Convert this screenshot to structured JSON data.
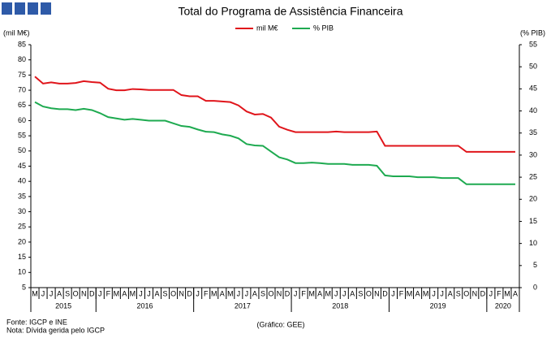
{
  "chart_data": {
    "type": "line",
    "title": "Total do Programa de Assistência Financeira",
    "y_label": "(mil M€)",
    "y2_label": "(% PIB)",
    "footnotes": [
      "Fonte: IGCP e INE",
      "Nota: Dívida gerida pelo IGCP"
    ],
    "credit": "(Gráfico: GEE)",
    "categories": [
      "M",
      "J",
      "J",
      "A",
      "S",
      "O",
      "N",
      "D",
      "J",
      "F",
      "M",
      "A",
      "M",
      "J",
      "J",
      "A",
      "S",
      "O",
      "N",
      "D",
      "J",
      "F",
      "M",
      "A",
      "M",
      "J",
      "J",
      "A",
      "S",
      "O",
      "N",
      "D",
      "J",
      "F",
      "M",
      "A",
      "M",
      "J",
      "J",
      "A",
      "S",
      "O",
      "N",
      "D",
      "J",
      "F",
      "M",
      "A",
      "M",
      "J",
      "J",
      "A",
      "S",
      "O",
      "N",
      "D",
      "J",
      "F",
      "M",
      "A"
    ],
    "year_groups": [
      {
        "label": "2015",
        "months": 8
      },
      {
        "label": "2016",
        "months": 12
      },
      {
        "label": "2017",
        "months": 12
      },
      {
        "label": "2018",
        "months": 12
      },
      {
        "label": "2019",
        "months": 12
      },
      {
        "label": "2020",
        "months": 4
      }
    ],
    "series": [
      {
        "name": "mil M€",
        "color": "#e0151b",
        "axis": "y",
        "values": [
          74.5,
          72.2,
          72.6,
          72.2,
          72.2,
          72.4,
          73,
          72.7,
          72.5,
          70.5,
          70,
          70,
          70.4,
          70.3,
          70.1,
          70.1,
          70.1,
          70.1,
          68.4,
          68,
          68,
          66.5,
          66.5,
          66.3,
          66.1,
          65,
          63,
          62,
          62.2,
          61,
          58,
          57,
          56.2,
          56.2,
          56.2,
          56.2,
          56.2,
          56.4,
          56.2,
          56.2,
          56.2,
          56.2,
          56.4,
          51.7,
          51.7,
          51.7,
          51.7,
          51.7,
          51.7,
          51.7,
          51.7,
          51.7,
          51.7,
          49.7,
          49.7,
          49.7,
          49.7,
          49.7,
          49.7,
          49.7
        ]
      },
      {
        "name": "% PIB",
        "color": "#1eaa50",
        "axis": "y2",
        "values": [
          42,
          41,
          40.6,
          40.4,
          40.4,
          40.2,
          40.5,
          40.2,
          39.5,
          38.6,
          38.3,
          38,
          38.2,
          38,
          37.8,
          37.8,
          37.8,
          37.2,
          36.6,
          36.4,
          35.8,
          35.3,
          35.2,
          34.7,
          34.4,
          33.8,
          32.5,
          32.2,
          32.1,
          30.8,
          29.5,
          29,
          28.2,
          28.2,
          28.3,
          28.2,
          28,
          28,
          28,
          27.8,
          27.8,
          27.8,
          27.6,
          25.4,
          25.2,
          25.2,
          25.2,
          25,
          25,
          25,
          24.8,
          24.8,
          24.8,
          23.4,
          23.4,
          23.4,
          23.4,
          23.4,
          23.4,
          23.4
        ]
      }
    ],
    "ylim": [
      5,
      85
    ],
    "yticks": [
      5,
      10,
      15,
      20,
      25,
      30,
      35,
      40,
      45,
      50,
      55,
      60,
      65,
      70,
      75,
      80,
      85
    ],
    "y2lim": [
      0,
      55
    ],
    "y2ticks": [
      0,
      5,
      10,
      15,
      20,
      25,
      30,
      35,
      40,
      45,
      50,
      55
    ],
    "y_color": "#c00000",
    "y2_color": "#1eaa50"
  }
}
